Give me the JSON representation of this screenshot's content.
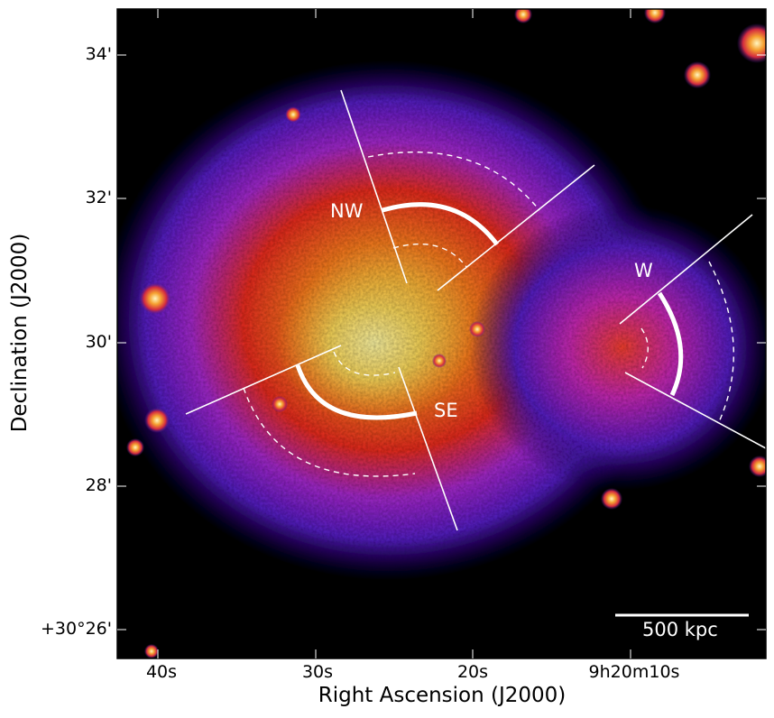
{
  "image": {
    "description_colormap": "gnuplot2-like (black-blue-purple-red-orange-yellow)",
    "scalebar_label": "500 kpc",
    "regions": [
      "NW",
      "SE",
      "W"
    ]
  },
  "axes": {
    "xlabel": "Right Ascension (J2000)",
    "ylabel": "Declination (J2000)",
    "xticks": [
      "40s",
      "30s",
      "20s",
      "9h20m10s"
    ],
    "yticks": [
      "34'",
      "32'",
      "30'",
      "28'",
      "+30°26'"
    ]
  },
  "colors": {
    "background": "#000000",
    "halo_outer": "#3a1aa8",
    "halo_mid": "#8b2bd6",
    "halo_red": "#f0301a",
    "core_orange": "#f7a024",
    "core_yellow": "#f4e36a",
    "annotation": "#ffffff"
  }
}
